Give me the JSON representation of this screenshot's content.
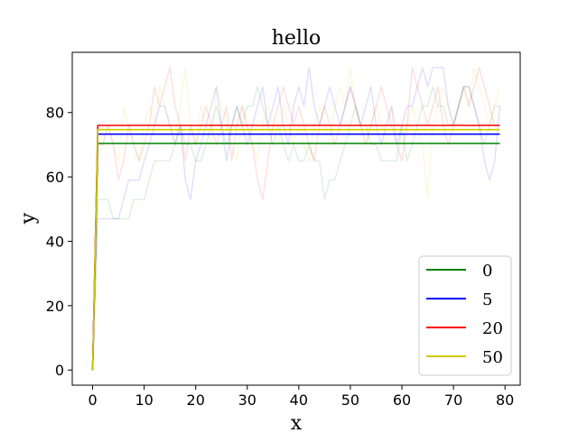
{
  "chart_data": {
    "type": "line",
    "title": "hello",
    "xlabel": "x",
    "ylabel": "y",
    "xlim": [
      -3.95,
      82.95
    ],
    "ylim": [
      -4.7,
      98.7
    ],
    "xticks": [
      0,
      10,
      20,
      30,
      40,
      50,
      60,
      70,
      80
    ],
    "yticks": [
      0,
      20,
      40,
      60,
      80
    ],
    "grid": false,
    "legend_position": "lower right",
    "series": [
      {
        "name": "0",
        "color": "#008000",
        "values": [
          0,
          70.4,
          70.4,
          70.4,
          70.4,
          70.4,
          70.4,
          70.4,
          70.4,
          70.4,
          70.4,
          70.4,
          70.4,
          70.4,
          70.4,
          70.4,
          70.4,
          70.4,
          70.4,
          70.4,
          70.4,
          70.4,
          70.4,
          70.4,
          70.4,
          70.4,
          70.4,
          70.4,
          70.4,
          70.4,
          70.4,
          70.4,
          70.4,
          70.4,
          70.4,
          70.4,
          70.4,
          70.4,
          70.4,
          70.4,
          70.4,
          70.4,
          70.4,
          70.4,
          70.4,
          70.4,
          70.4,
          70.4,
          70.4,
          70.4,
          70.4,
          70.4,
          70.4,
          70.4,
          70.4,
          70.4,
          70.4,
          70.4,
          70.4,
          70.4,
          70.4,
          70.4,
          70.4,
          70.4,
          70.4,
          70.4,
          70.4,
          70.4,
          70.4,
          70.4,
          70.4,
          70.4,
          70.4,
          70.4,
          70.4,
          70.4,
          70.4,
          70.4,
          70.4,
          70.4
        ],
        "raw": [
          0,
          53,
          53,
          53,
          47,
          47,
          47,
          47,
          53,
          53,
          53,
          59,
          65,
          65,
          65,
          65,
          70,
          76,
          70,
          70,
          65,
          65,
          70,
          76,
          82,
          76,
          70,
          76,
          82,
          76,
          82,
          82,
          88,
          82,
          76,
          70,
          76,
          70,
          65,
          70,
          65,
          65,
          70,
          65,
          65,
          53,
          59,
          59,
          65,
          70,
          76,
          82,
          76,
          76,
          70,
          70,
          65,
          65,
          65,
          65,
          76,
          65,
          70,
          76,
          82,
          82,
          88,
          82,
          82,
          76,
          76,
          82,
          88,
          88,
          82,
          76,
          70,
          76,
          82,
          82
        ]
      },
      {
        "name": "5",
        "color": "#0000ff",
        "values": [
          0,
          73.3,
          73.3,
          73.3,
          73.3,
          73.3,
          73.3,
          73.3,
          73.3,
          73.3,
          73.3,
          73.3,
          73.3,
          73.3,
          73.3,
          73.3,
          73.3,
          73.3,
          73.3,
          73.3,
          73.3,
          73.3,
          73.3,
          73.3,
          73.3,
          73.3,
          73.3,
          73.3,
          73.3,
          73.3,
          73.3,
          73.3,
          73.3,
          73.3,
          73.3,
          73.3,
          73.3,
          73.3,
          73.3,
          73.3,
          73.3,
          73.3,
          73.3,
          73.3,
          73.3,
          73.3,
          73.3,
          73.3,
          73.3,
          73.3,
          73.3,
          73.3,
          73.3,
          73.3,
          73.3,
          73.3,
          73.3,
          73.3,
          73.3,
          73.3,
          73.3,
          73.3,
          73.3,
          73.3,
          73.3,
          73.3,
          73.3,
          73.3,
          73.3,
          73.3,
          73.3,
          73.3,
          73.3,
          73.3,
          73.3,
          73.3,
          73.3,
          73.3,
          73.3,
          73.3
        ],
        "raw": [
          0,
          47,
          47,
          47,
          47,
          47,
          53,
          59,
          59,
          59,
          65,
          70,
          76,
          82,
          82,
          76,
          70,
          76,
          59,
          53,
          65,
          70,
          76,
          82,
          88,
          76,
          65,
          76,
          82,
          76,
          70,
          76,
          82,
          88,
          76,
          82,
          88,
          76,
          70,
          82,
          88,
          82,
          94,
          82,
          76,
          82,
          88,
          82,
          76,
          82,
          88,
          82,
          76,
          82,
          88,
          76,
          70,
          76,
          82,
          70,
          76,
          82,
          82,
          88,
          94,
          88,
          94,
          94,
          94,
          82,
          76,
          82,
          88,
          88,
          82,
          76,
          65,
          59,
          65,
          82
        ]
      },
      {
        "name": "20",
        "color": "#ff0000",
        "values": [
          0,
          76,
          76,
          76,
          76,
          76,
          76,
          76,
          76,
          76,
          76,
          76,
          76,
          76,
          76,
          76,
          76,
          76,
          76,
          76,
          76,
          76,
          76,
          76,
          76,
          76,
          76,
          76,
          76,
          76,
          76,
          76,
          76,
          76,
          76,
          76,
          76,
          76,
          76,
          76,
          76,
          76,
          76,
          76,
          76,
          76,
          76,
          76,
          76,
          76,
          76,
          76,
          76,
          76,
          76,
          76,
          76,
          76,
          76,
          76,
          76,
          76,
          76,
          76,
          76,
          76,
          76,
          76,
          76,
          76,
          76,
          76,
          76,
          76,
          76,
          76,
          76,
          76,
          76,
          76
        ],
        "raw": [
          0,
          70,
          70,
          76,
          70,
          59,
          65,
          76,
          70,
          65,
          70,
          76,
          88,
          82,
          88,
          94,
          82,
          76,
          65,
          76,
          70,
          76,
          82,
          76,
          70,
          76,
          82,
          65,
          76,
          82,
          76,
          70,
          59,
          53,
          65,
          76,
          82,
          88,
          82,
          76,
          82,
          76,
          70,
          65,
          76,
          82,
          76,
          70,
          76,
          82,
          88,
          82,
          76,
          70,
          76,
          82,
          88,
          82,
          76,
          70,
          65,
          76,
          94,
          88,
          82,
          76,
          82,
          88,
          76,
          70,
          76,
          82,
          88,
          82,
          88,
          94,
          88,
          82,
          76,
          76
        ]
      },
      {
        "name": "50",
        "color": "#cccc00",
        "values": [
          0,
          74.7,
          74.7,
          74.7,
          74.7,
          74.7,
          74.7,
          74.7,
          74.7,
          74.7,
          74.7,
          74.7,
          74.7,
          74.7,
          74.7,
          74.7,
          74.7,
          74.7,
          74.7,
          74.7,
          74.7,
          74.7,
          74.7,
          74.7,
          74.7,
          74.7,
          74.7,
          74.7,
          74.7,
          74.7,
          74.7,
          74.7,
          74.7,
          74.7,
          74.7,
          74.7,
          74.7,
          74.7,
          74.7,
          74.7,
          74.7,
          74.7,
          74.7,
          74.7,
          74.7,
          74.7,
          74.7,
          74.7,
          74.7,
          74.7,
          74.7,
          74.7,
          74.7,
          74.7,
          74.7,
          74.7,
          74.7,
          74.7,
          74.7,
          74.7,
          74.7,
          74.7,
          74.7,
          74.7,
          74.7,
          74.7,
          74.7,
          74.7,
          74.7,
          74.7,
          74.7,
          74.7,
          74.7,
          74.7,
          74.7,
          74.7,
          74.7,
          74.7,
          74.7,
          74.7
        ],
        "raw": [
          0,
          65,
          70,
          76,
          70,
          65,
          82,
          76,
          70,
          65,
          76,
          82,
          76,
          88,
          82,
          76,
          70,
          82,
          94,
          76,
          70,
          82,
          76,
          70,
          88,
          82,
          76,
          70,
          65,
          82,
          76,
          70,
          65,
          76,
          82,
          76,
          70,
          82,
          76,
          70,
          76,
          70,
          65,
          76,
          82,
          76,
          70,
          82,
          88,
          82,
          94,
          82,
          76,
          70,
          76,
          82,
          76,
          70,
          82,
          76,
          70,
          76,
          82,
          76,
          70,
          53,
          76,
          82,
          88,
          82,
          76,
          82,
          88,
          82,
          94,
          88,
          82,
          76,
          82,
          88
        ]
      }
    ]
  }
}
